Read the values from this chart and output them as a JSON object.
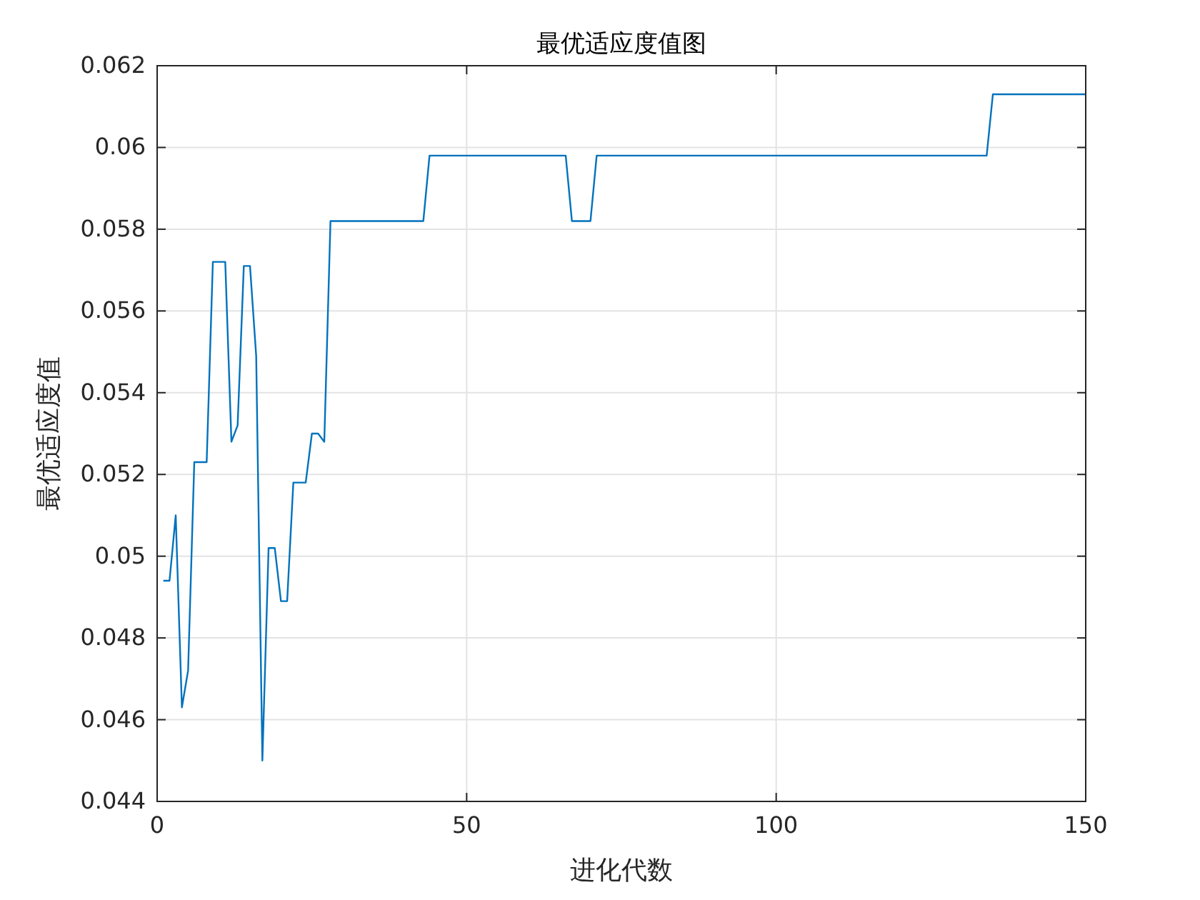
{
  "chart_data": {
    "type": "line",
    "title": "最优适应度值图",
    "xlabel": "进化代数",
    "ylabel": "最优适应度值",
    "x": [
      1,
      2,
      3,
      4,
      5,
      6,
      8,
      9,
      11,
      12,
      13,
      14,
      15,
      16,
      17,
      18,
      19,
      20,
      21,
      22,
      24,
      25,
      26,
      27,
      28,
      43,
      44,
      66,
      67,
      70,
      71,
      134,
      135,
      150
    ],
    "series": [
      {
        "color": "#0072bd",
        "values": [
          0.0494,
          0.0494,
          0.051,
          0.0463,
          0.0472,
          0.0523,
          0.0523,
          0.0572,
          0.0572,
          0.0528,
          0.0532,
          0.0571,
          0.0571,
          0.0549,
          0.045,
          0.0502,
          0.0502,
          0.0489,
          0.0489,
          0.0518,
          0.0518,
          0.053,
          0.053,
          0.0528,
          0.0582,
          0.0582,
          0.0598,
          0.0598,
          0.0582,
          0.0582,
          0.0598,
          0.0598,
          0.0613,
          0.0613
        ]
      }
    ],
    "xlim": [
      0,
      150
    ],
    "xticks": [
      0,
      50,
      100,
      150
    ],
    "ylim": [
      0.044,
      0.062
    ],
    "yticks": [
      0.044,
      0.046,
      0.048,
      {
        "value": 0.05,
        "label": "0.05"
      },
      0.052,
      0.054,
      0.056,
      0.058,
      {
        "value": 0.06,
        "label": "0.06"
      },
      0.062
    ],
    "grid": true,
    "marker": "none",
    "line_style": "solid"
  }
}
